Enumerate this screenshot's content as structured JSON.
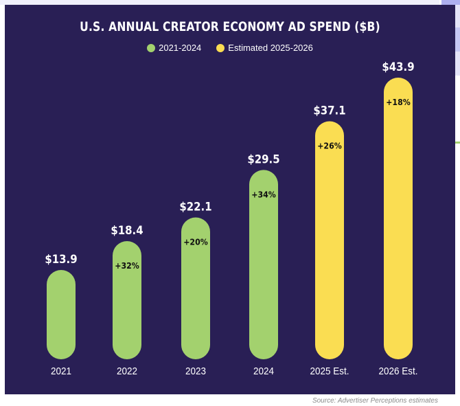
{
  "chart_data": {
    "type": "bar",
    "title": "U.S. ANNUAL CREATOR ECONOMY AD SPEND ($B)",
    "xlabel": "",
    "ylabel": "",
    "categories": [
      "2021",
      "2022",
      "2023",
      "2024",
      "2025 Est.",
      "2026 Est."
    ],
    "values": [
      13.9,
      18.4,
      22.1,
      29.5,
      37.1,
      43.9
    ],
    "value_labels": [
      "$13.9",
      "$18.4",
      "$22.1",
      "$29.5",
      "$37.1",
      "$43.9"
    ],
    "growth_labels": [
      "",
      "+32%",
      "+20%",
      "+34%",
      "+26%",
      "+18%"
    ],
    "series_of_bar": [
      0,
      0,
      0,
      0,
      1,
      1
    ],
    "legend": [
      {
        "name": "2021-2024",
        "color": "#a3d16e"
      },
      {
        "name": "Estimated 2025-2026",
        "color": "#fadd52"
      }
    ],
    "legend_position": "top-center",
    "grid": false,
    "ylim": [
      0,
      45
    ]
  },
  "colors": {
    "background": "#291f55",
    "actual": "#a3d16e",
    "estimated": "#fadd52",
    "text": "#ffffff"
  },
  "source": "Source: Advertiser Perceptions estimates"
}
